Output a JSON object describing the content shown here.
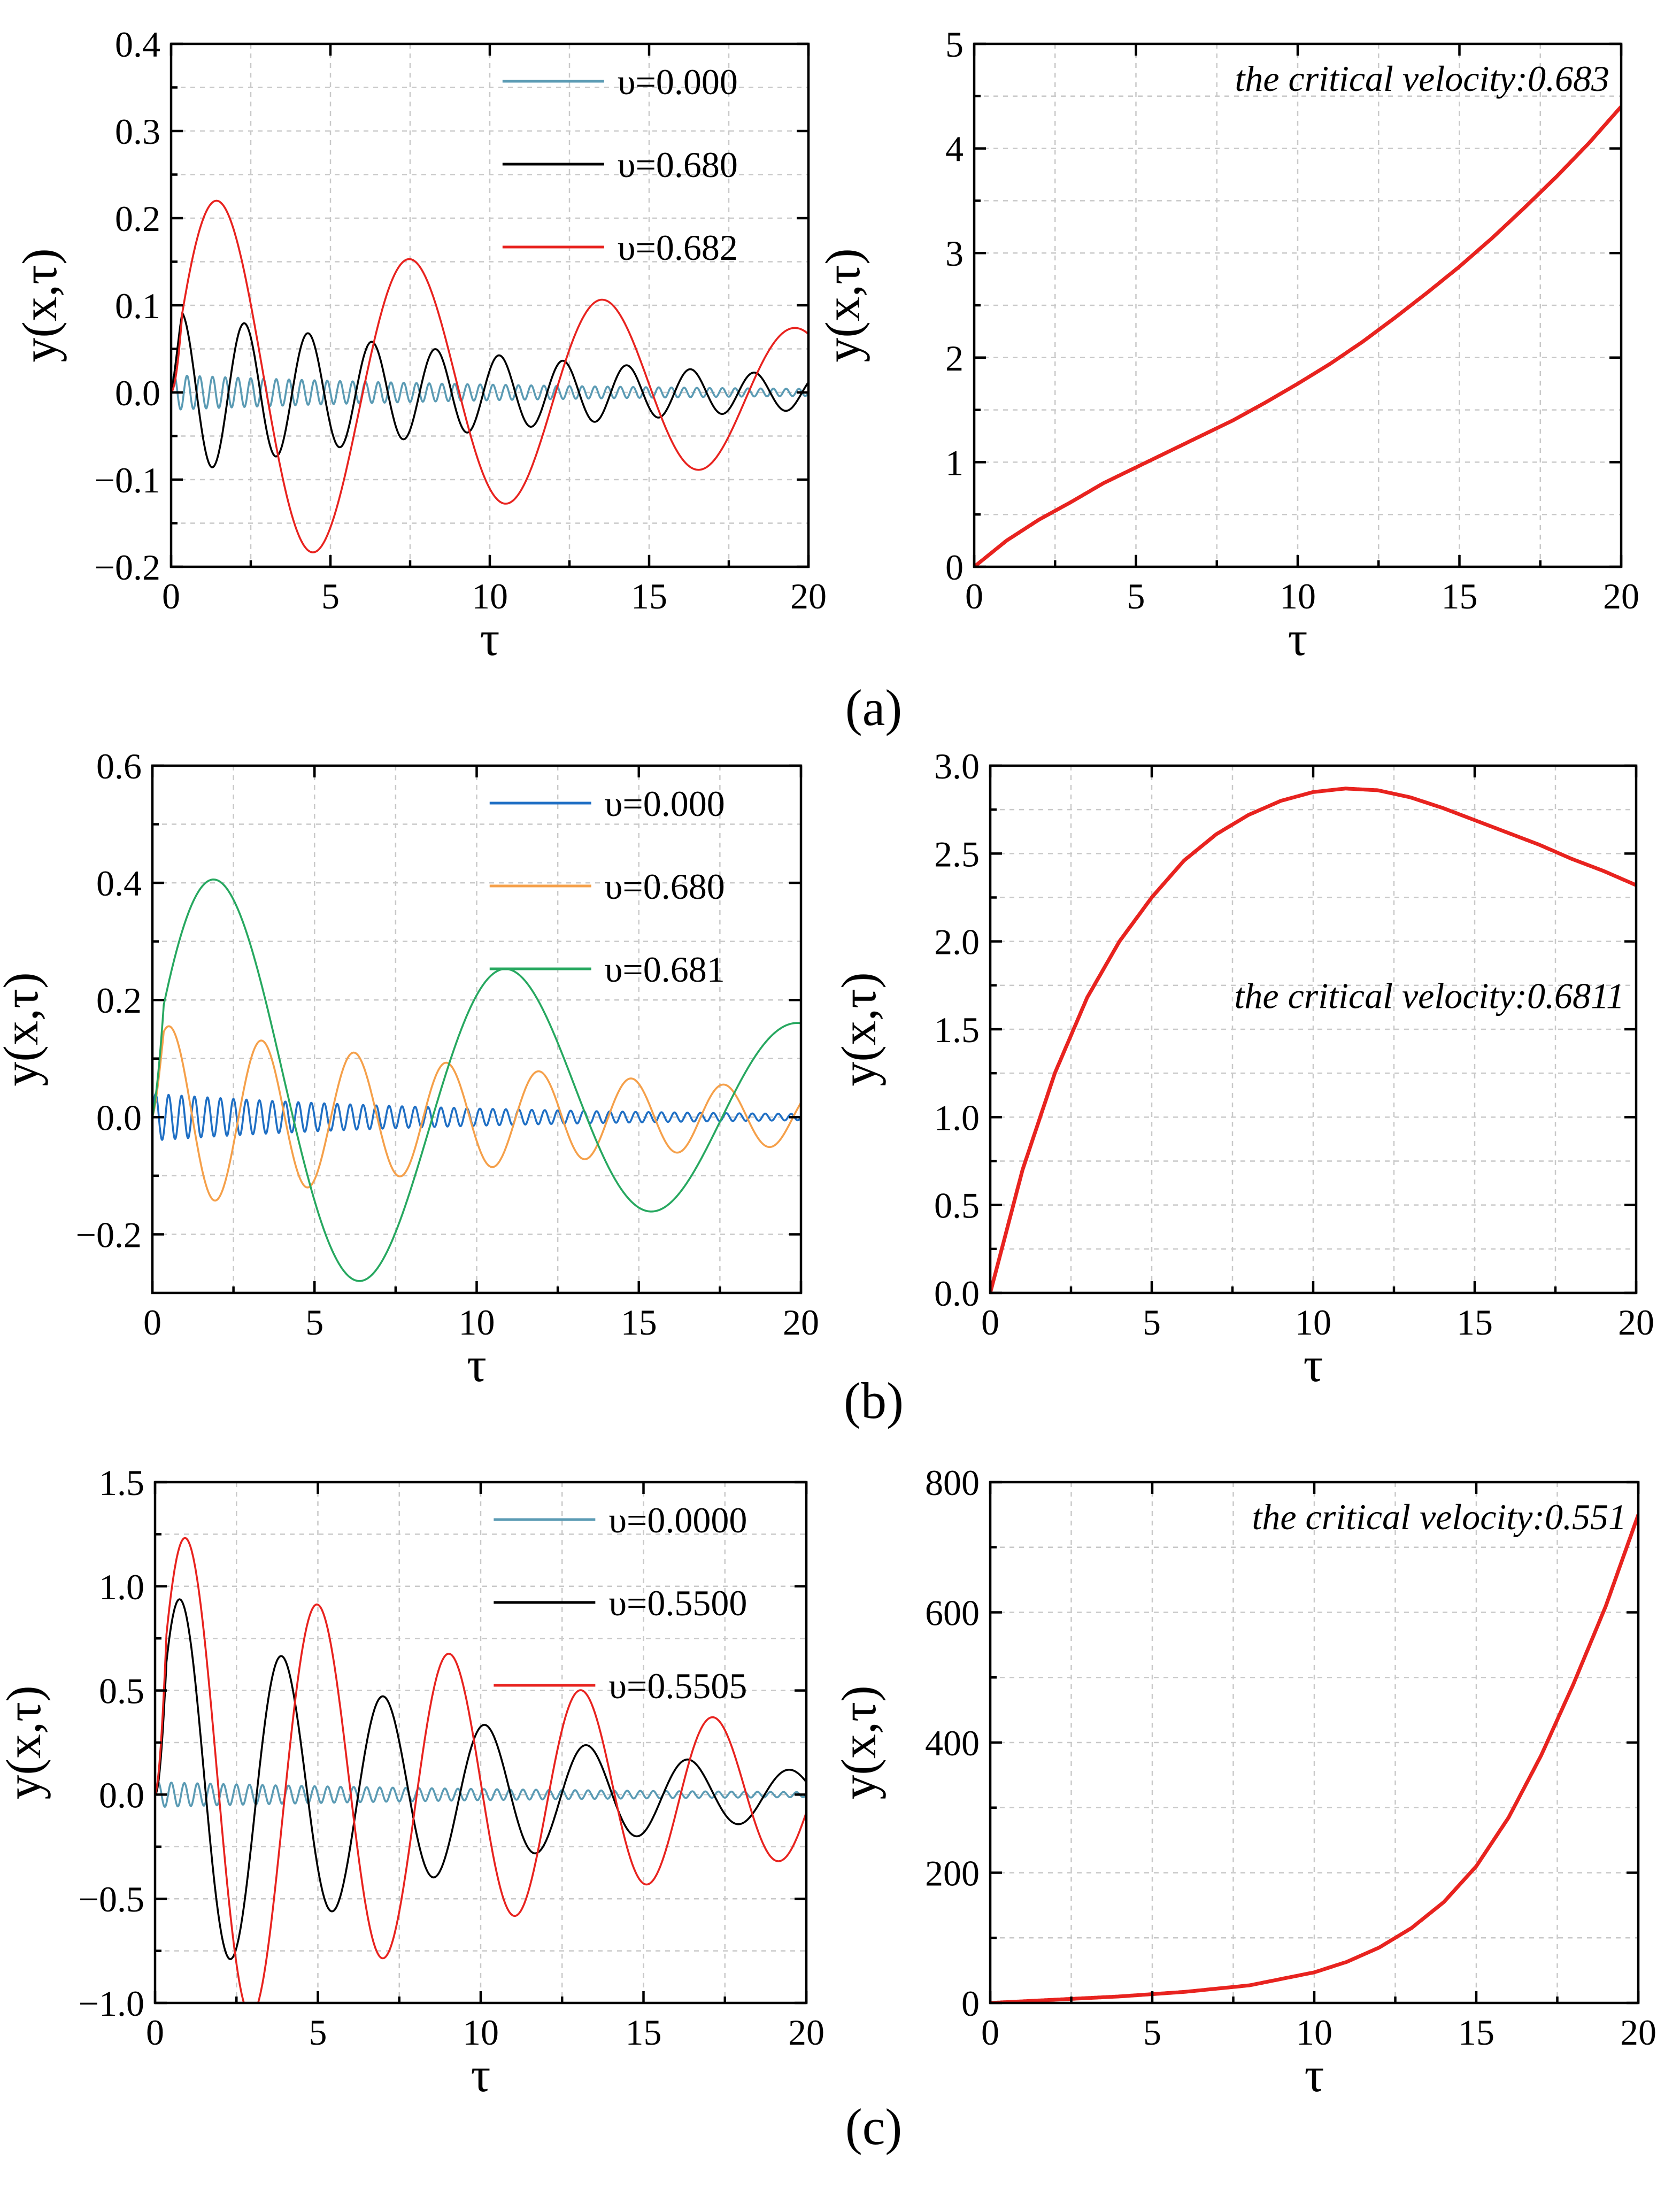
{
  "panel_labels": [
    "(a)",
    "(b)",
    "(c)"
  ],
  "chart_data": [
    {
      "type": "line",
      "title": "",
      "xlabel": "τ",
      "ylabel": "y(x,τ)",
      "xlim": [
        0,
        20
      ],
      "ylim": [
        -0.2,
        0.4
      ],
      "xticks": [
        0,
        5,
        10,
        15,
        20
      ],
      "yticks": [
        -0.2,
        -0.1,
        0.0,
        0.1,
        0.2,
        0.3,
        0.4
      ],
      "ytick_labels": [
        "−0.2",
        "−0.1",
        "0.0",
        "0.1",
        "0.2",
        "0.3",
        "0.4"
      ],
      "legend_position": "top-right",
      "series": [
        {
          "name": "υ=0.000",
          "color": "#5b9bb4",
          "model": "hf",
          "A": 0.02,
          "decay": 0.08,
          "period": 0.4
        },
        {
          "name": "υ=0.680",
          "color": "#000000",
          "model": "osc",
          "A": 0.095,
          "decay": 0.078,
          "period": 2.0,
          "phase": 0.3,
          "offset": 0.0
        },
        {
          "name": "υ=0.682",
          "color": "#e8231f",
          "model": "osc",
          "A": 0.24,
          "decay": 0.06,
          "period": 6.05,
          "phase": 1.48,
          "offset": 0.0
        }
      ]
    },
    {
      "type": "line",
      "title": "",
      "xlabel": "τ",
      "ylabel": "y(x,τ)",
      "xlim": [
        0,
        20
      ],
      "ylim": [
        0,
        5
      ],
      "xticks": [
        0,
        5,
        10,
        15,
        20
      ],
      "yticks": [
        0,
        1,
        2,
        3,
        4,
        5
      ],
      "ytick_labels": [
        "0",
        "1",
        "2",
        "3",
        "4",
        "5"
      ],
      "annotation": "the critical velocity:0.683",
      "annotation_position": "top-right",
      "series": [
        {
          "name": "critical",
          "color": "#e8231f",
          "model": "table",
          "x": [
            0,
            1,
            2,
            3,
            4,
            5,
            6,
            7,
            8,
            9,
            10,
            11,
            12,
            13,
            14,
            15,
            16,
            17,
            18,
            19,
            20
          ],
          "y": [
            0,
            0.25,
            0.45,
            0.62,
            0.8,
            0.95,
            1.1,
            1.25,
            1.4,
            1.57,
            1.75,
            1.94,
            2.15,
            2.38,
            2.62,
            2.87,
            3.14,
            3.43,
            3.73,
            4.05,
            4.4
          ]
        }
      ]
    },
    {
      "type": "line",
      "title": "",
      "xlabel": "τ",
      "ylabel": "y(x,τ)",
      "xlim": [
        0,
        20
      ],
      "ylim": [
        -0.3,
        0.6
      ],
      "xticks": [
        0,
        5,
        10,
        15,
        20
      ],
      "yticks": [
        -0.2,
        0.0,
        0.2,
        0.4,
        0.6
      ],
      "ytick_labels": [
        "−0.2",
        "0.0",
        "0.2",
        "0.4",
        "0.6"
      ],
      "legend_position": "top-right",
      "series": [
        {
          "name": "υ=0.000",
          "color": "#1f6fc4",
          "model": "hf",
          "A": 0.04,
          "decay": 0.1,
          "period": 0.4
        },
        {
          "name": "υ=0.680",
          "color": "#f5a04a",
          "model": "osc",
          "A": 0.16,
          "decay": 0.06,
          "period": 2.85,
          "phase": 0.52,
          "offset": 0.0
        },
        {
          "name": "υ=0.681",
          "color": "#27a860",
          "model": "osc",
          "A": 0.43,
          "decay": 0.056,
          "period": 9.0,
          "phase": 2.0,
          "offset": 0.02
        }
      ]
    },
    {
      "type": "line",
      "title": "",
      "xlabel": "τ",
      "ylabel": "y(x,τ)",
      "xlim": [
        0,
        20
      ],
      "ylim": [
        0,
        3.0
      ],
      "xticks": [
        0,
        5,
        10,
        15,
        20
      ],
      "yticks": [
        0,
        0.5,
        1.0,
        1.5,
        2.0,
        2.5,
        3.0
      ],
      "ytick_labels": [
        "0.0",
        "0.5",
        "1.0",
        "1.5",
        "2.0",
        "2.5",
        "3.0"
      ],
      "annotation": "the critical velocity:0.6811",
      "annotation_position": "center-right",
      "series": [
        {
          "name": "critical",
          "color": "#e8231f",
          "model": "table",
          "x": [
            0,
            1,
            2,
            3,
            4,
            5,
            6,
            7,
            8,
            9,
            10,
            11,
            12,
            13,
            14,
            15,
            16,
            17,
            18,
            19,
            20
          ],
          "y": [
            0,
            0.7,
            1.25,
            1.68,
            2.0,
            2.25,
            2.46,
            2.61,
            2.72,
            2.8,
            2.85,
            2.87,
            2.86,
            2.82,
            2.76,
            2.69,
            2.62,
            2.55,
            2.47,
            2.4,
            2.32
          ]
        }
      ]
    },
    {
      "type": "line",
      "title": "",
      "xlabel": "τ",
      "ylabel": "y(x,τ)",
      "xlim": [
        0,
        20
      ],
      "ylim": [
        -1.0,
        1.5
      ],
      "xticks": [
        0,
        5,
        10,
        15,
        20
      ],
      "yticks": [
        -1.0,
        -0.5,
        0.0,
        0.5,
        1.0,
        1.5
      ],
      "ytick_labels": [
        "−1.0",
        "−0.5",
        "0.0",
        "0.5",
        "1.0",
        "1.5"
      ],
      "legend_position": "top-right",
      "series": [
        {
          "name": "υ=0.0000",
          "color": "#5b9bb4",
          "model": "hf",
          "A": 0.06,
          "decay": 0.08,
          "period": 0.4
        },
        {
          "name": "υ=0.5500",
          "color": "#000000",
          "model": "osc",
          "A": 1.02,
          "decay": 0.11,
          "period": 3.12,
          "phase": 0.78,
          "offset": 0.0
        },
        {
          "name": "υ=0.5505",
          "color": "#e8231f",
          "model": "osc",
          "A": 1.32,
          "decay": 0.074,
          "period": 4.05,
          "phase": 0.95,
          "offset": 0.0
        }
      ]
    },
    {
      "type": "line",
      "title": "",
      "xlabel": "τ",
      "ylabel": "y(x,τ)",
      "xlim": [
        0,
        20
      ],
      "ylim": [
        0,
        800
      ],
      "xticks": [
        0,
        5,
        10,
        15,
        20
      ],
      "yticks": [
        0,
        200,
        400,
        600,
        800
      ],
      "ytick_labels": [
        "0",
        "200",
        "400",
        "600",
        "800"
      ],
      "annotation": "the critical velocity:0.551",
      "annotation_position": "top-right",
      "series": [
        {
          "name": "critical",
          "color": "#e8231f",
          "model": "table",
          "x": [
            0,
            2,
            4,
            6,
            8,
            10,
            11,
            12,
            13,
            14,
            15,
            16,
            17,
            18,
            19,
            20
          ],
          "y": [
            0,
            5,
            10,
            17,
            27,
            47,
            63,
            85,
            115,
            155,
            210,
            285,
            380,
            490,
            610,
            750
          ]
        }
      ]
    }
  ]
}
